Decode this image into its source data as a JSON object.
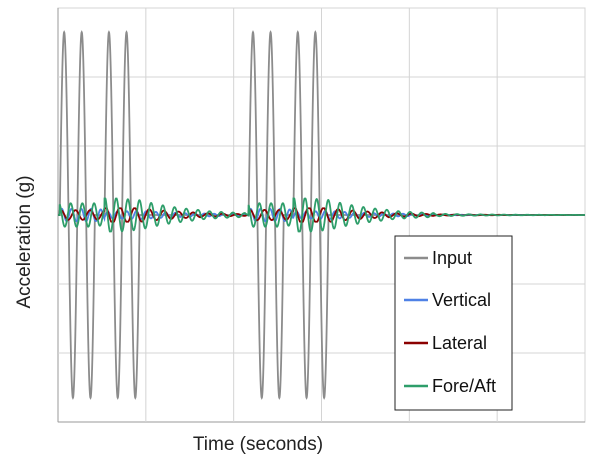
{
  "chart_data": {
    "type": "line",
    "title": "",
    "xlabel": "Time (seconds)",
    "ylabel": "Acceleration (g)",
    "xlim": [
      0,
      6
    ],
    "ylim": [
      -3,
      3
    ],
    "grid": true,
    "tick_labels_shown": false,
    "legend_position": "bottom-right",
    "series": [
      {
        "name": "Input",
        "color": "#8c8c8c",
        "bursts": [
          {
            "start": 0.02,
            "end": 0.42,
            "peak": 2.65
          },
          {
            "start": 0.53,
            "end": 0.93,
            "peak": 2.65
          },
          {
            "start": 2.17,
            "end": 2.57,
            "peak": 2.65
          },
          {
            "start": 2.68,
            "end": 3.08,
            "peak": 2.65
          }
        ],
        "cycles_per_burst": 2,
        "note_value": 0
      },
      {
        "name": "Vertical",
        "color": "#4f81e6",
        "response_peak": 0.09
      },
      {
        "name": "Lateral",
        "color": "#8b0000",
        "response_peak": 0.07
      },
      {
        "name": "Fore/Aft",
        "color": "#2e9e6a",
        "response_peak": 0.17
      }
    ]
  }
}
